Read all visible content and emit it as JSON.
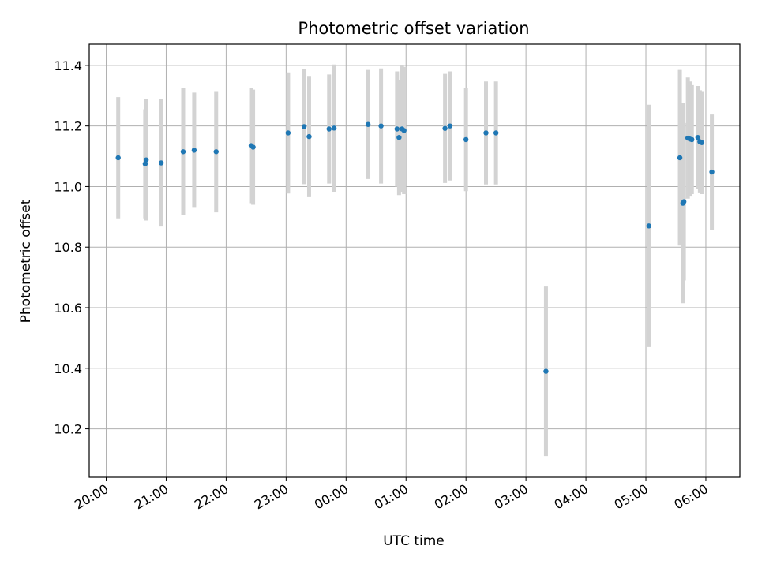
{
  "chart_data": {
    "type": "scatter",
    "title": "Photometric offset variation",
    "xlabel": "UTC time",
    "ylabel": "Photometric offset",
    "x_tick_labels": [
      "20:00",
      "21:00",
      "22:00",
      "23:00",
      "00:00",
      "01:00",
      "02:00",
      "03:00",
      "04:00",
      "05:00",
      "06:00"
    ],
    "y_tick_labels": [
      "10.2",
      "10.4",
      "10.6",
      "10.8",
      "11.0",
      "11.2",
      "11.4"
    ],
    "ylim": [
      10.04,
      11.47
    ],
    "xlim": [
      "19:43",
      "06:34"
    ],
    "grid": true,
    "marker_color": "#1f77b4",
    "errorbar_color": "#d3d3d3",
    "points": [
      {
        "time": "20:12",
        "value": 11.095,
        "err": 0.2
      },
      {
        "time": "20:39",
        "value": 11.075,
        "err": 0.18
      },
      {
        "time": "20:40",
        "value": 11.088,
        "err": 0.2
      },
      {
        "time": "20:55",
        "value": 11.078,
        "err": 0.21
      },
      {
        "time": "21:17",
        "value": 11.115,
        "err": 0.21
      },
      {
        "time": "21:28",
        "value": 11.12,
        "err": 0.19
      },
      {
        "time": "21:50",
        "value": 11.115,
        "err": 0.2
      },
      {
        "time": "22:25",
        "value": 11.135,
        "err": 0.19
      },
      {
        "time": "22:27",
        "value": 11.13,
        "err": 0.19
      },
      {
        "time": "23:02",
        "value": 11.177,
        "err": 0.2
      },
      {
        "time": "23:18",
        "value": 11.198,
        "err": 0.19
      },
      {
        "time": "23:23",
        "value": 11.165,
        "err": 0.2
      },
      {
        "time": "23:43",
        "value": 11.19,
        "err": 0.18
      },
      {
        "time": "23:48",
        "value": 11.193,
        "err": 0.21
      },
      {
        "time": "00:22",
        "value": 11.205,
        "err": 0.18
      },
      {
        "time": "00:35",
        "value": 11.2,
        "err": 0.19
      },
      {
        "time": "00:51",
        "value": 11.19,
        "err": 0.19
      },
      {
        "time": "00:53",
        "value": 11.162,
        "err": 0.19
      },
      {
        "time": "00:56",
        "value": 11.19,
        "err": 0.21
      },
      {
        "time": "00:58",
        "value": 11.185,
        "err": 0.21
      },
      {
        "time": "01:39",
        "value": 11.192,
        "err": 0.18
      },
      {
        "time": "01:44",
        "value": 11.2,
        "err": 0.18
      },
      {
        "time": "02:00",
        "value": 11.155,
        "err": 0.17
      },
      {
        "time": "02:20",
        "value": 11.177,
        "err": 0.17
      },
      {
        "time": "02:30",
        "value": 11.177,
        "err": 0.17
      },
      {
        "time": "03:20",
        "value": 10.39,
        "err": 0.28
      },
      {
        "time": "05:03",
        "value": 10.87,
        "err": 0.4
      },
      {
        "time": "05:34",
        "value": 11.095,
        "err": 0.29
      },
      {
        "time": "05:37",
        "value": 10.945,
        "err": 0.33
      },
      {
        "time": "05:38",
        "value": 10.95,
        "err": 0.26
      },
      {
        "time": "05:42",
        "value": 11.16,
        "err": 0.2
      },
      {
        "time": "05:44",
        "value": 11.157,
        "err": 0.19
      },
      {
        "time": "05:46",
        "value": 11.155,
        "err": 0.18
      },
      {
        "time": "05:52",
        "value": 11.162,
        "err": 0.17
      },
      {
        "time": "05:54",
        "value": 11.148,
        "err": 0.17
      },
      {
        "time": "05:56",
        "value": 11.145,
        "err": 0.17
      },
      {
        "time": "06:06",
        "value": 11.048,
        "err": 0.19
      }
    ]
  }
}
